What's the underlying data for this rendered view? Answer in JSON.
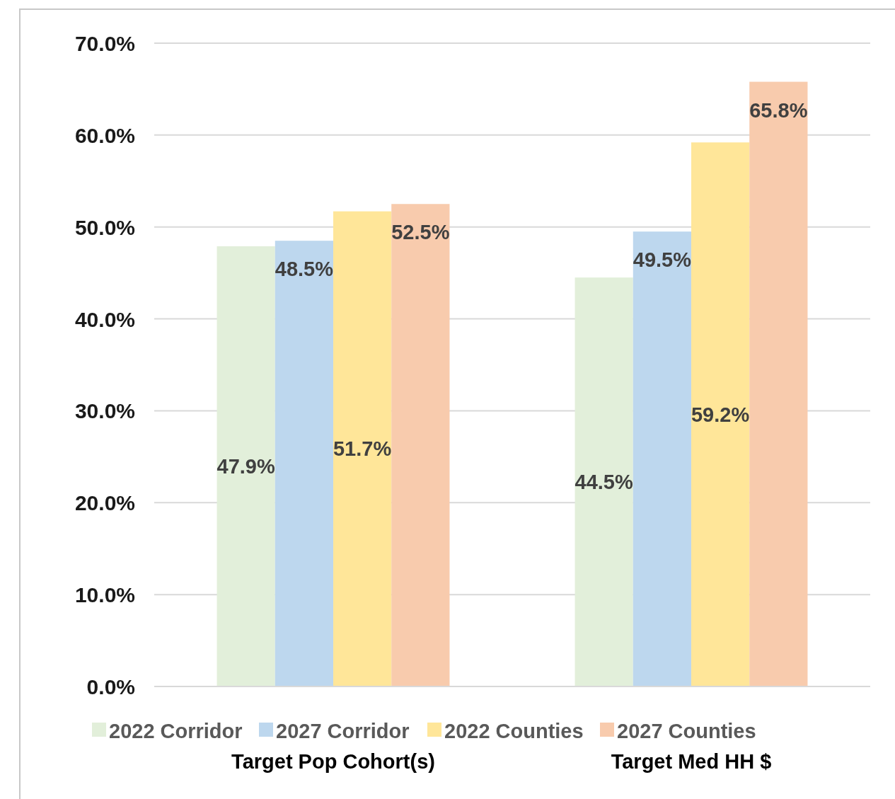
{
  "chart_data": {
    "type": "bar",
    "categories": [
      "Target Pop Cohort(s)",
      "Target Med HH $"
    ],
    "series": [
      {
        "name": "2022 Corridor",
        "color": "#e2efda",
        "values": [
          47.9,
          44.5
        ]
      },
      {
        "name": "2027 Corridor",
        "color": "#bdd7ee",
        "values": [
          48.5,
          49.5
        ]
      },
      {
        "name": "2022 Counties",
        "color": "#ffe699",
        "values": [
          51.7,
          59.2
        ]
      },
      {
        "name": "2027 Counties",
        "color": "#f8cbad",
        "values": [
          52.5,
          65.8
        ]
      }
    ],
    "ylim": [
      0,
      70
    ],
    "yticks": [
      {
        "value": 0,
        "label": "0.0%"
      },
      {
        "value": 10,
        "label": "10.0%"
      },
      {
        "value": 20,
        "label": "20.0%"
      },
      {
        "value": 30,
        "label": "30.0%"
      },
      {
        "value": 40,
        "label": "40.0%"
      },
      {
        "value": 50,
        "label": "50.0%"
      },
      {
        "value": 60,
        "label": "60.0%"
      },
      {
        "value": 70,
        "label": "70.0%"
      }
    ],
    "grid": "y",
    "legend": "bottom",
    "value_labels": [
      [
        "47.9%",
        "44.5%"
      ],
      [
        "48.5%",
        "49.5%"
      ],
      [
        "51.7%",
        "59.2%"
      ],
      [
        "52.5%",
        "65.8%"
      ]
    ]
  }
}
